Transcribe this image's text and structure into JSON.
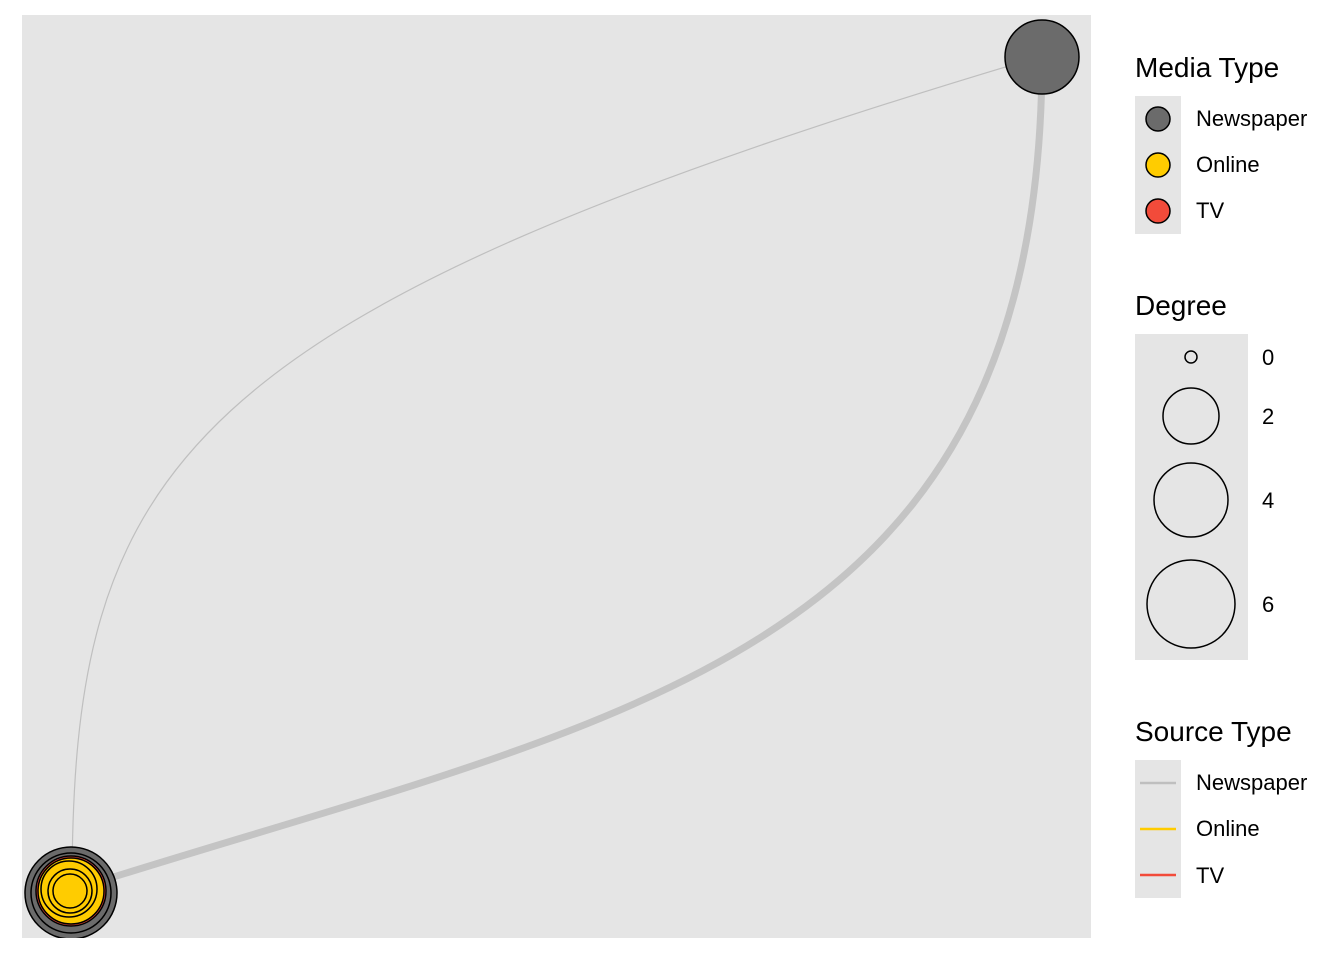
{
  "nodes": [
    {
      "id": "top-right-newspaper",
      "media_type": "Newspaper",
      "degree": 4
    },
    {
      "id": "bottom-left-newspaper",
      "media_type": "Newspaper",
      "degree": 6
    },
    {
      "id": "bottom-left-tv",
      "media_type": "TV",
      "degree": 5
    },
    {
      "id": "bottom-left-online",
      "media_type": "Online",
      "degree": 3
    }
  ],
  "edges": [
    {
      "source_type": "Newspaper",
      "weight": "thin"
    },
    {
      "source_type": "Newspaper",
      "weight": "thick"
    }
  ],
  "colors": {
    "newspaper_node": "#6b6b6b",
    "online_node": "#ffcc00",
    "tv_node": "#f24b3a",
    "newspaper_edge": "#bfbfbf",
    "online_edge": "#ffcc00",
    "tv_edge": "#f24b3a",
    "panel_background": "#e5e5e5"
  },
  "legend_media": {
    "title": "Media Type",
    "items": [
      {
        "label": "Newspaper",
        "color": "#6b6b6b"
      },
      {
        "label": "Online",
        "color": "#ffcc00"
      },
      {
        "label": "TV",
        "color": "#f24b3a"
      }
    ]
  },
  "legend_degree": {
    "title": "Degree",
    "items": [
      {
        "label": "0",
        "value": 0
      },
      {
        "label": "2",
        "value": 2
      },
      {
        "label": "4",
        "value": 4
      },
      {
        "label": "6",
        "value": 6
      }
    ]
  },
  "legend_source": {
    "title": "Source Type",
    "items": [
      {
        "label": "Newspaper",
        "color": "#bfbfbf"
      },
      {
        "label": "Online",
        "color": "#ffcc00"
      },
      {
        "label": "TV",
        "color": "#f24b3a"
      }
    ]
  }
}
